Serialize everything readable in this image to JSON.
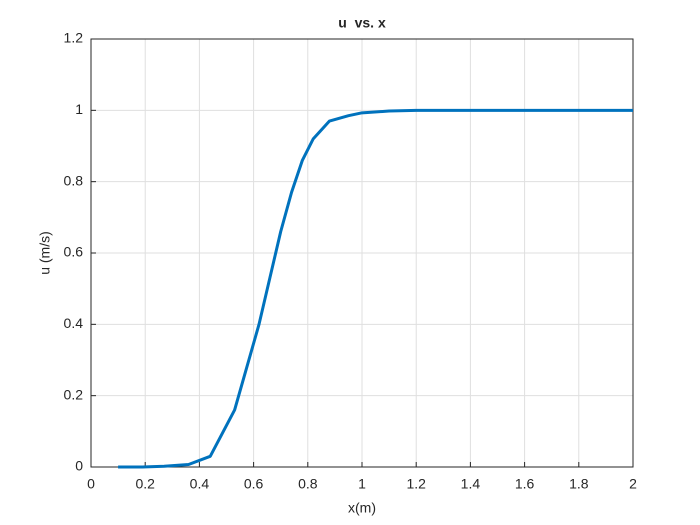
{
  "chart_data": {
    "type": "line",
    "title": "u  vs. x",
    "x_label": "x(m)",
    "y_label": "u (m/s)",
    "x": [
      0.1,
      0.19,
      0.27,
      0.36,
      0.44,
      0.53,
      0.62,
      0.66,
      0.7,
      0.74,
      0.78,
      0.82,
      0.88,
      0.95,
      1.0,
      1.1,
      1.2,
      1.5,
      2.0
    ],
    "series": [
      {
        "name": "u",
        "color": "#0072bd",
        "values": [
          0,
          0,
          0.002,
          0.007,
          0.03,
          0.16,
          0.4,
          0.53,
          0.66,
          0.77,
          0.86,
          0.92,
          0.97,
          0.985,
          0.993,
          0.998,
          1,
          1,
          1
        ]
      }
    ],
    "xlim": [
      0,
      2
    ],
    "xticks": [
      0,
      0.2,
      0.4,
      0.6,
      0.8,
      1,
      1.2,
      1.4,
      1.6,
      1.8,
      2
    ],
    "ylim": [
      0,
      1.2
    ],
    "yticks": [
      0,
      0.2,
      0.4,
      0.6,
      0.8,
      1,
      1.2
    ],
    "grid": true
  }
}
